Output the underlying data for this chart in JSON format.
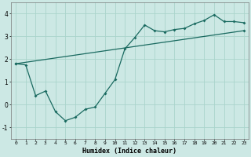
{
  "xlabel": "Humidex (Indice chaleur)",
  "ylabel": "",
  "background_color": "#cce8e4",
  "grid_color": "#aad4cc",
  "line_color": "#1a6a60",
  "xlim": [
    -0.5,
    23.5
  ],
  "ylim": [
    -1.5,
    4.5
  ],
  "xticks": [
    0,
    1,
    2,
    3,
    4,
    5,
    6,
    7,
    8,
    9,
    10,
    11,
    12,
    13,
    14,
    15,
    16,
    17,
    18,
    19,
    20,
    21,
    22,
    23
  ],
  "yticks": [
    -1,
    0,
    1,
    2,
    3,
    4
  ],
  "line1_x": [
    0,
    1,
    2,
    3,
    4,
    5,
    6,
    7,
    8,
    9,
    10,
    11,
    12,
    13,
    14,
    15,
    16,
    17,
    18,
    19,
    20,
    21,
    22,
    23
  ],
  "line1_y": [
    1.8,
    1.75,
    0.4,
    0.6,
    -0.3,
    -0.7,
    -0.55,
    -0.2,
    -0.1,
    0.5,
    1.1,
    2.45,
    2.95,
    3.5,
    3.25,
    3.2,
    3.3,
    3.35,
    3.55,
    3.7,
    3.95,
    3.65,
    3.65,
    3.6
  ],
  "line2_x": [
    0,
    23
  ],
  "line2_y": [
    1.8,
    3.25
  ],
  "marker_size": 2.0,
  "line_width": 0.9,
  "tick_fontsize": 4.5,
  "xlabel_fontsize": 6.0
}
